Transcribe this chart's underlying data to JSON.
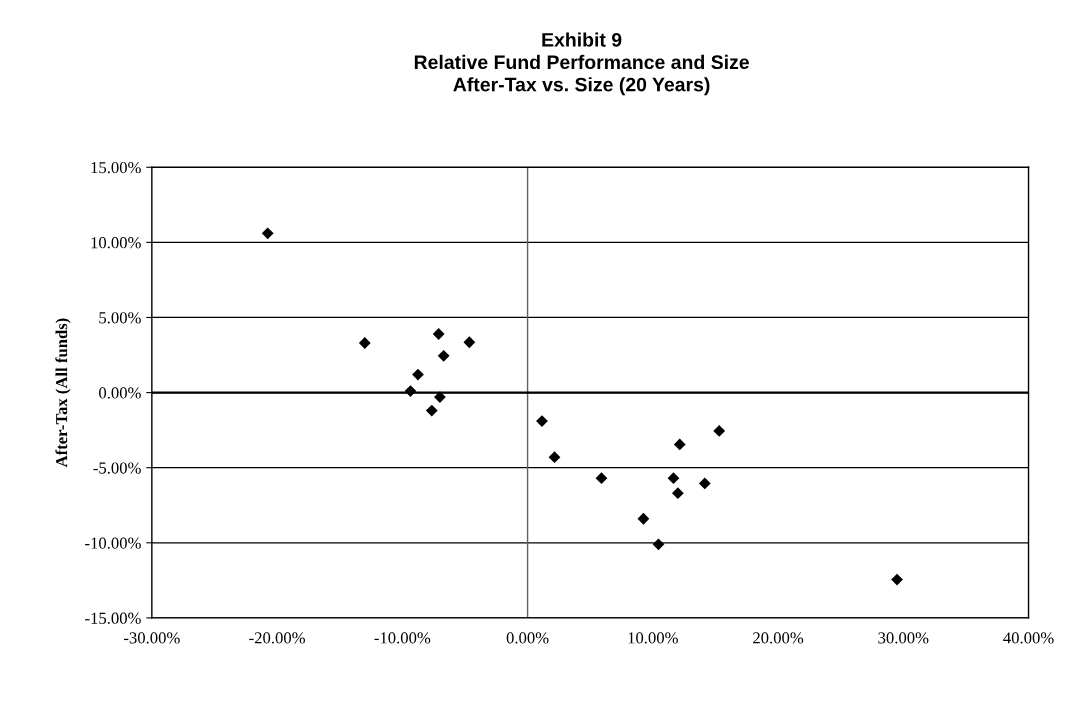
{
  "chart_data": {
    "type": "scatter",
    "title": "Exhibit 9\nRelative Fund Performance and Size\nAfter-Tax vs. Size (20 Years)",
    "ylabel": "After-Tax (All funds)",
    "series": [
      {
        "color": "#000000",
        "x": [
          -20.75,
          -13.0,
          -7.1,
          -4.65,
          -6.7,
          -8.75,
          -9.35,
          -7.0,
          -7.65,
          1.15,
          2.15,
          5.9,
          9.25,
          10.45,
          11.65,
          12.0,
          12.15,
          14.15,
          15.3,
          29.5
        ],
        "values": [
          10.6,
          3.3,
          3.9,
          3.35,
          2.45,
          1.2,
          0.1,
          -0.3,
          -1.2,
          -1.9,
          -4.3,
          -5.7,
          -8.4,
          -10.1,
          -5.7,
          -6.7,
          -3.45,
          -6.05,
          -2.55,
          -12.45
        ]
      }
    ],
    "xlim": [
      -30,
      40
    ],
    "xticks": [
      {
        "value": -30,
        "label": "-30.00%"
      },
      {
        "value": -20,
        "label": "-20.00%"
      },
      {
        "value": -10,
        "label": "-10.00%"
      },
      {
        "value": 0,
        "label": "0.00%"
      },
      {
        "value": 10,
        "label": "10.00%"
      },
      {
        "value": 20,
        "label": "20.00%"
      },
      {
        "value": 30,
        "label": "30.00%"
      },
      {
        "value": 40,
        "label": "40.00%"
      }
    ],
    "ylim": [
      -15,
      15
    ],
    "yticks": [
      {
        "value": -15,
        "label": "-15.00%"
      },
      {
        "value": -10,
        "label": "-10.00%"
      },
      {
        "value": -5,
        "label": "-5.00%"
      },
      {
        "value": 0,
        "label": "0.00%"
      },
      {
        "value": 5,
        "label": "5.00%"
      },
      {
        "value": 10,
        "label": "10.00%"
      },
      {
        "value": 15,
        "label": "15.00%"
      }
    ],
    "grid": "y",
    "marker": "diamond",
    "ref_lines": [
      {
        "axis": "x",
        "value": 0,
        "color": "#606060"
      },
      {
        "axis": "y",
        "value": 0,
        "color": "#000000"
      }
    ]
  }
}
